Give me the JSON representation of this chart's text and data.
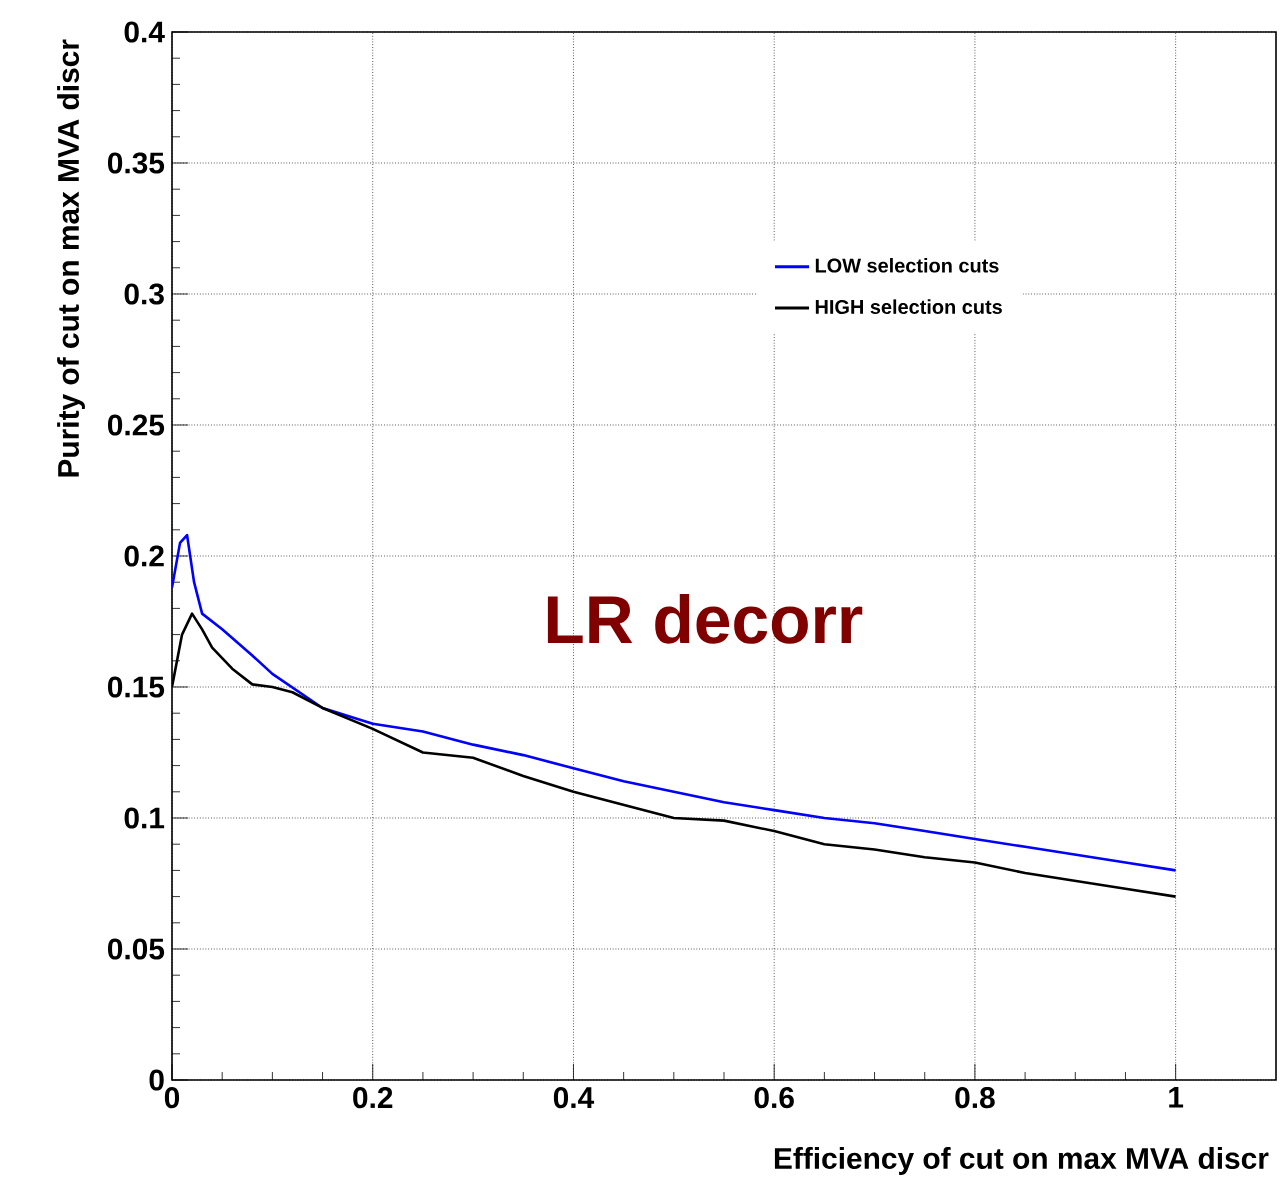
{
  "chart_data": {
    "type": "line",
    "xlabel": "Efficiency of cut on max MVA discr",
    "ylabel": "Purity of cut on max MVA discr",
    "annotations": [
      "LR decorr"
    ],
    "xlim": [
      0,
      1.1
    ],
    "ylim": [
      0,
      0.4
    ],
    "xticks": [
      0,
      0.2,
      0.4,
      0.6,
      0.8,
      1
    ],
    "yticks": [
      0,
      0.05,
      0.1,
      0.15,
      0.2,
      0.25,
      0.3,
      0.35,
      0.4
    ],
    "grid": true,
    "legend": "top right",
    "marker": "none",
    "line_style": "solid",
    "series": [
      {
        "name": "LOW selection cuts",
        "color": "#0000ff",
        "x": [
          0,
          0.008,
          0.015,
          0.022,
          0.03,
          0.05,
          0.08,
          0.1,
          0.15,
          0.2,
          0.25,
          0.3,
          0.35,
          0.4,
          0.45,
          0.5,
          0.55,
          0.6,
          0.65,
          0.7,
          0.75,
          0.8,
          0.85,
          0.9,
          0.95,
          1.0
        ],
        "values": [
          0.188,
          0.205,
          0.208,
          0.19,
          0.178,
          0.172,
          0.162,
          0.155,
          0.142,
          0.136,
          0.133,
          0.128,
          0.124,
          0.119,
          0.114,
          0.11,
          0.106,
          0.103,
          0.1,
          0.098,
          0.095,
          0.092,
          0.089,
          0.086,
          0.083,
          0.08
        ]
      },
      {
        "name": "HIGH selection cuts",
        "color": "#000000",
        "x": [
          0,
          0.01,
          0.02,
          0.03,
          0.04,
          0.06,
          0.08,
          0.1,
          0.12,
          0.15,
          0.2,
          0.25,
          0.3,
          0.35,
          0.4,
          0.45,
          0.5,
          0.55,
          0.6,
          0.65,
          0.7,
          0.75,
          0.8,
          0.85,
          0.9,
          0.95,
          1.0
        ],
        "values": [
          0.15,
          0.17,
          0.178,
          0.172,
          0.165,
          0.157,
          0.151,
          0.15,
          0.148,
          0.142,
          0.134,
          0.125,
          0.123,
          0.116,
          0.11,
          0.105,
          0.1,
          0.099,
          0.095,
          0.09,
          0.088,
          0.085,
          0.083,
          0.079,
          0.076,
          0.073,
          0.07
        ]
      }
    ]
  }
}
